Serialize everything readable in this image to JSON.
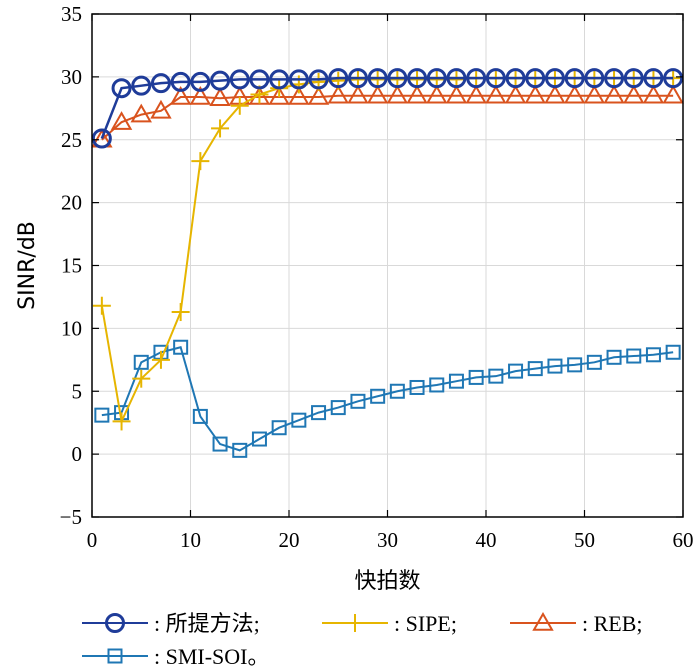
{
  "chart_data": {
    "type": "line",
    "xlabel": "快拍数",
    "ylabel": "SINR/dB",
    "xlim": [
      0,
      60
    ],
    "ylim": [
      -5,
      35
    ],
    "xticks": [
      "0",
      "10",
      "20",
      "30",
      "40",
      "50",
      "60"
    ],
    "yticks": [
      "−5",
      "0",
      "5",
      "10",
      "15",
      "20",
      "25",
      "30",
      "35"
    ],
    "grid": true,
    "legend_position": "bottom",
    "series": [
      {
        "name": ": 所提方法;",
        "color": "#1f3c99",
        "marker": "circle",
        "x": [
          1,
          3,
          5,
          7,
          9,
          11,
          13,
          15,
          17,
          19,
          21,
          23,
          25,
          27,
          29,
          31,
          33,
          35,
          37,
          39,
          41,
          43,
          45,
          47,
          49,
          51,
          53,
          55,
          57,
          59
        ],
        "y": [
          25.1,
          29.1,
          29.3,
          29.5,
          29.6,
          29.6,
          29.7,
          29.8,
          29.8,
          29.8,
          29.8,
          29.8,
          29.9,
          29.9,
          29.9,
          29.9,
          29.9,
          29.9,
          29.9,
          29.9,
          29.9,
          29.9,
          29.9,
          29.9,
          29.9,
          29.9,
          29.9,
          29.9,
          29.9,
          29.9
        ]
      },
      {
        "name": ": SIPE;",
        "color": "#e6b500",
        "marker": "plus",
        "x": [
          1,
          3,
          5,
          7,
          9,
          11,
          13,
          15,
          17,
          19,
          21,
          23,
          25,
          27,
          29,
          31,
          33,
          35,
          37,
          39,
          41,
          43,
          45,
          47,
          49,
          51,
          53,
          55,
          57,
          59
        ],
        "y": [
          11.8,
          2.6,
          6.0,
          7.5,
          11.3,
          23.3,
          25.9,
          27.7,
          28.6,
          29.1,
          29.4,
          29.6,
          29.7,
          29.8,
          29.8,
          29.8,
          29.8,
          29.8,
          29.8,
          29.9,
          29.9,
          29.9,
          29.9,
          29.9,
          29.9,
          29.9,
          29.9,
          29.9,
          29.9,
          29.9
        ]
      },
      {
        "name": ": REB;",
        "color": "#d9531e",
        "marker": "triangle",
        "x": [
          1,
          3,
          5,
          7,
          9,
          11,
          13,
          15,
          17,
          19,
          21,
          23,
          25,
          27,
          29,
          31,
          33,
          35,
          37,
          39,
          41,
          43,
          45,
          47,
          49,
          51,
          53,
          55,
          57,
          59
        ],
        "y": [
          25.0,
          26.4,
          27.0,
          27.3,
          28.4,
          28.4,
          28.3,
          28.4,
          28.4,
          28.4,
          28.4,
          28.4,
          28.5,
          28.5,
          28.5,
          28.5,
          28.5,
          28.5,
          28.5,
          28.5,
          28.5,
          28.5,
          28.5,
          28.5,
          28.5,
          28.5,
          28.5,
          28.5,
          28.5,
          28.5
        ]
      },
      {
        "name": ": SMI-SOI。",
        "color": "#1f77b4",
        "marker": "square",
        "x": [
          1,
          3,
          5,
          7,
          9,
          11,
          13,
          15,
          17,
          19,
          21,
          23,
          25,
          27,
          29,
          31,
          33,
          35,
          37,
          39,
          41,
          43,
          45,
          47,
          49,
          51,
          53,
          55,
          57,
          59
        ],
        "y": [
          3.1,
          3.3,
          7.3,
          8.1,
          8.5,
          3.0,
          0.8,
          0.3,
          1.2,
          2.1,
          2.7,
          3.3,
          3.7,
          4.2,
          4.6,
          5.0,
          5.3,
          5.5,
          5.8,
          6.1,
          6.2,
          6.6,
          6.8,
          7.0,
          7.1,
          7.3,
          7.7,
          7.8,
          7.9,
          8.1
        ]
      }
    ]
  }
}
